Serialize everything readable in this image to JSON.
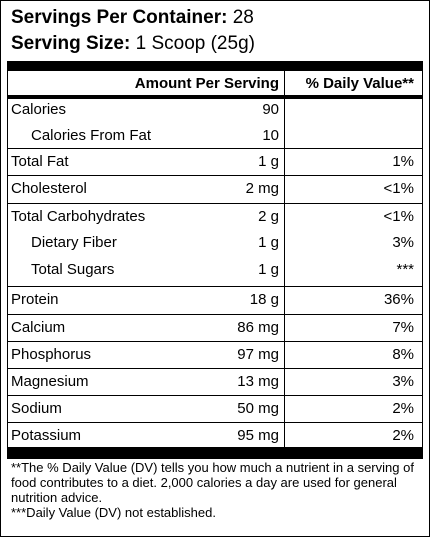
{
  "header": {
    "servings_label": "Servings Per Container:",
    "servings_value": "28",
    "serving_size_label": "Serving Size:",
    "serving_size_value": "1 Scoop (25g)"
  },
  "columns": {
    "amount": "Amount Per Serving",
    "daily_value": "% Daily Value**"
  },
  "rows": [
    {
      "name": "Calories",
      "amount": "90",
      "dv": "",
      "indent": false
    },
    {
      "name": "Calories From Fat",
      "amount": "10",
      "dv": "",
      "indent": true
    },
    {
      "name": "Total Fat",
      "amount": "1 g",
      "dv": "1%",
      "indent": false
    },
    {
      "name": "Cholesterol",
      "amount": "2 mg",
      "dv": "<1%",
      "indent": false
    },
    {
      "name": "Total Carbohydrates",
      "amount": "2 g",
      "dv": "<1%",
      "indent": false
    },
    {
      "name": "Dietary Fiber",
      "amount": "1 g",
      "dv": "3%",
      "indent": true
    },
    {
      "name": "Total Sugars",
      "amount": "1 g",
      "dv": "***",
      "indent": true
    },
    {
      "name": "Protein",
      "amount": "18 g",
      "dv": "36%",
      "indent": false
    },
    {
      "name": "Calcium",
      "amount": "86 mg",
      "dv": "7%",
      "indent": false
    },
    {
      "name": "Phosphorus",
      "amount": "97 mg",
      "dv": "8%",
      "indent": false
    },
    {
      "name": "Magnesium",
      "amount": "13 mg",
      "dv": "3%",
      "indent": false
    },
    {
      "name": "Sodium",
      "amount": "50 mg",
      "dv": "2%",
      "indent": false
    },
    {
      "name": "Potassium",
      "amount": "95 mg",
      "dv": "2%",
      "indent": false
    }
  ],
  "footnotes": [
    "**The % Daily Value (DV) tells you how much a nutrient in a serving of food contributes to a diet. 2,000 calories a day are used for general nutrition advice.",
    "***Daily Value (DV) not established."
  ]
}
